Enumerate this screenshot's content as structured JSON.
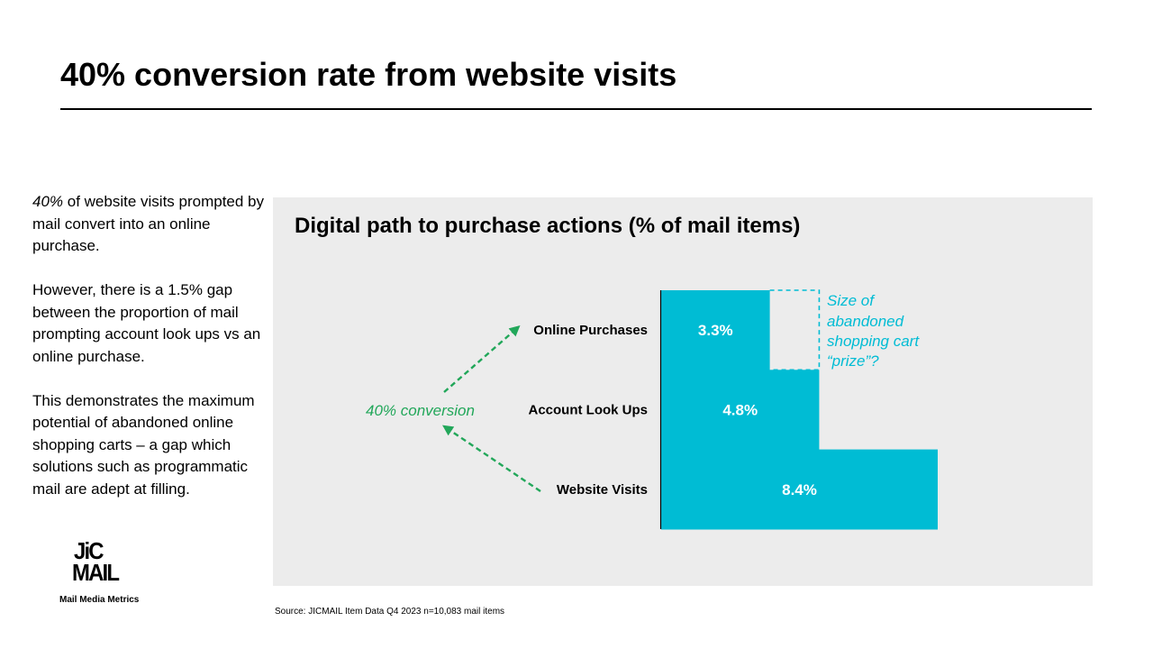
{
  "slide": {
    "title": "40% conversion rate from website visits"
  },
  "body": {
    "p1_emphasis": "40%",
    "p1_rest": " of website visits prompted by mail convert into an online purchase.",
    "p2": "However, there is a 1.5% gap between the proportion of mail prompting account look ups vs an online purchase.",
    "p3": "This demonstrates the maximum potential of abandoned online shopping carts – a gap which solutions such as programmatic mail are adept at filling."
  },
  "logo": {
    "line1": "JiC",
    "line2": "MAIL",
    "tagline": "Mail Media Metrics"
  },
  "footer": {
    "source": "Source: JICMAIL  Item Data Q4 2023 n=10,083 mail items"
  },
  "colors": {
    "bar": "#00bcd4",
    "conversion": "#22a75a",
    "panel": "#ececec"
  },
  "chart_data": {
    "type": "bar",
    "orientation": "horizontal",
    "title": "Digital path to purchase actions (% of mail items)",
    "categories": [
      "Online Purchases",
      "Account Look Ups",
      "Website Visits"
    ],
    "values": [
      3.3,
      4.8,
      8.4
    ],
    "value_labels": [
      "3.3%",
      "4.8%",
      "8.4%"
    ],
    "unit": "%",
    "xlim": [
      0,
      8.4
    ],
    "annotations": {
      "conversion": "40% conversion",
      "gap_line1": "Size of",
      "gap_line2": "abandoned",
      "gap_line3": "shopping cart",
      "gap_line4": "“prize”?"
    }
  }
}
